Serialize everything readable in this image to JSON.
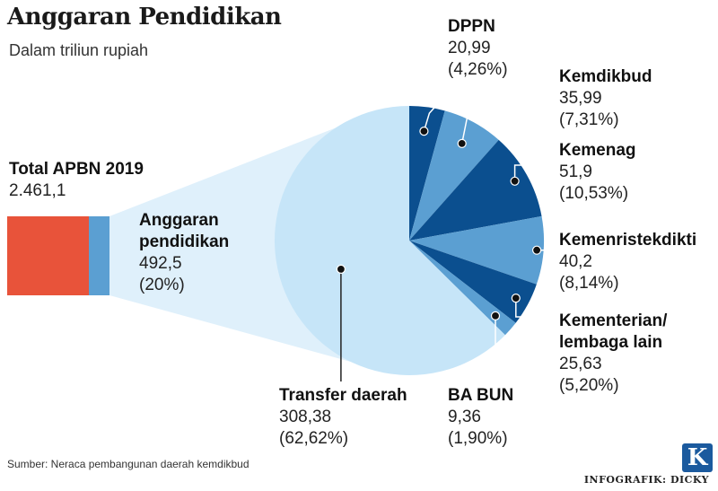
{
  "header": {
    "title": "Anggaran Pendidikan",
    "subtitle": "Dalam triliun rupiah"
  },
  "total": {
    "label": "Total APBN 2019",
    "value": "2.461,1"
  },
  "education": {
    "label_line1": "Anggaran",
    "label_line2": "pendidikan",
    "value": "492,5",
    "share": "(20%)"
  },
  "chart_data": {
    "type": "pie",
    "title": "Anggaran Pendidikan",
    "subtitle": "Dalam triliun rupiah",
    "bar_of_pie": {
      "total_label": "Total APBN 2019",
      "total_value": 2461.1,
      "portion_label": "Anggaran pendidikan",
      "portion_value": 492.5,
      "portion_share_pct": 20
    },
    "slices": [
      {
        "name": "DPPN",
        "value": 20.99,
        "pct": 4.26,
        "color": "#0b4f8f",
        "value_text": "20,99",
        "pct_text": "(4,26%)"
      },
      {
        "name": "Kemdikbud",
        "value": 35.99,
        "pct": 7.31,
        "color": "#5b9fd2",
        "value_text": "35,99",
        "pct_text": "(7,31%)"
      },
      {
        "name": "Kemenag",
        "value": 51.9,
        "pct": 10.53,
        "color": "#0b4f8f",
        "value_text": "51,9",
        "pct_text": "(10,53%)"
      },
      {
        "name": "Kemenristekdikti",
        "value": 40.2,
        "pct": 8.14,
        "color": "#5b9fd2",
        "value_text": "40,2",
        "pct_text": "(8,14%)"
      },
      {
        "name": "Kementerian/ lembaga lain",
        "name_line1": "Kementerian/",
        "name_line2": "lembaga lain",
        "value": 25.63,
        "pct": 5.2,
        "color": "#0b4f8f",
        "value_text": "25,63",
        "pct_text": "(5,20%)"
      },
      {
        "name": "BA BUN",
        "value": 9.36,
        "pct": 1.9,
        "color": "#5b9fd2",
        "value_text": "9,36",
        "pct_text": "(1,90%)"
      },
      {
        "name": "Transfer daerah",
        "value": 308.38,
        "pct": 62.62,
        "color": "#c6e5f8",
        "value_text": "308,38",
        "pct_text": "(62,62%)"
      }
    ]
  },
  "footer": {
    "source": "Sumber: Neraca pembangunan daerah kemdikbud",
    "credit": "INFOGRAFIK: DICKY",
    "logo_letter": "K"
  },
  "colors": {
    "total_bar": "#e8533a",
    "education_bar": "#5b9fd2",
    "connector": "#dff0fb"
  }
}
